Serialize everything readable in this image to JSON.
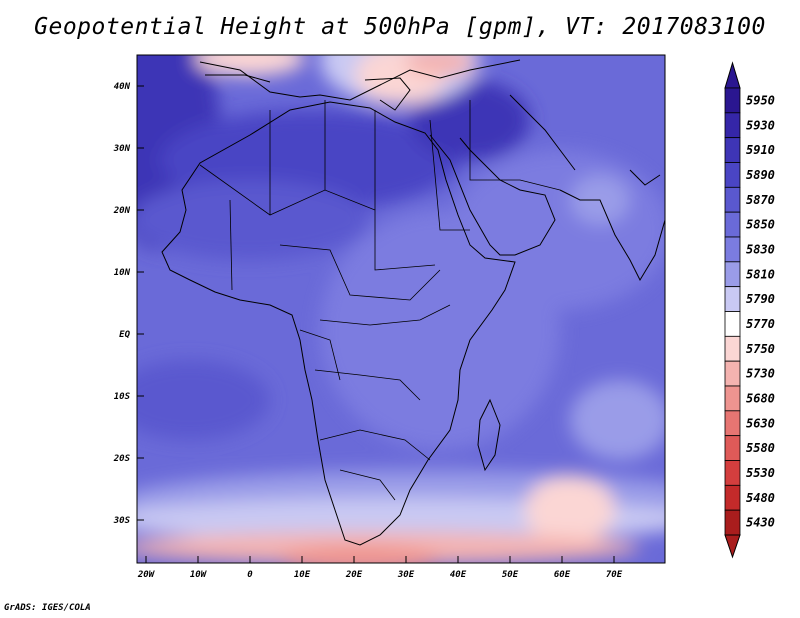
{
  "title": "Geopotential Height at 500hPa [gpm], VT: 2017083100",
  "credit": "GrADS: IGES/COLA",
  "axes": {
    "lat_labels": [
      "40N",
      "30N",
      "20N",
      "10N",
      "EQ",
      "10S",
      "20S",
      "30S"
    ],
    "lon_labels": [
      "20W",
      "10W",
      "0",
      "10E",
      "20E",
      "30E",
      "40E",
      "50E",
      "60E",
      "70E"
    ]
  },
  "colorbar": {
    "levels": [
      "5950",
      "5930",
      "5910",
      "5890",
      "5870",
      "5850",
      "5830",
      "5810",
      "5790",
      "5770",
      "5750",
      "5730",
      "5680",
      "5630",
      "5580",
      "5530",
      "5480",
      "5430"
    ],
    "colors": [
      "#2a1690",
      "#3526a8",
      "#3e35b6",
      "#4a45c4",
      "#5a58cf",
      "#6a6ad8",
      "#7b7ce0",
      "#9a9ce8",
      "#c9c9f3",
      "#ffffff",
      "#fbd6d4",
      "#f4b3b0",
      "#ee9490",
      "#e77572",
      "#df5a58",
      "#d43e3e",
      "#c32a2a",
      "#a91d1d"
    ]
  }
}
